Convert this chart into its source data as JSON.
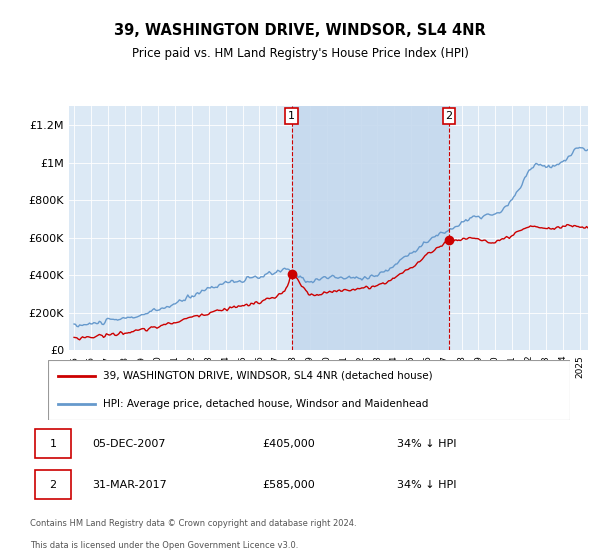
{
  "title": "39, WASHINGTON DRIVE, WINDSOR, SL4 4NR",
  "subtitle": "Price paid vs. HM Land Registry's House Price Index (HPI)",
  "legend_line1": "39, WASHINGTON DRIVE, WINDSOR, SL4 4NR (detached house)",
  "legend_line2": "HPI: Average price, detached house, Windsor and Maidenhead",
  "footer1": "Contains HM Land Registry data © Crown copyright and database right 2024.",
  "footer2": "This data is licensed under the Open Government Licence v3.0.",
  "annotation1_label": "1",
  "annotation1_date": "05-DEC-2007",
  "annotation1_price": "£405,000",
  "annotation1_hpi": "34% ↓ HPI",
  "annotation2_label": "2",
  "annotation2_date": "31-MAR-2017",
  "annotation2_price": "£585,000",
  "annotation2_hpi": "34% ↓ HPI",
  "point1_year": 2007.92,
  "point1_value": 405000,
  "point2_year": 2017.25,
  "point2_value": 585000,
  "bg_color": "#dce9f5",
  "plot_bg": "#dce9f5",
  "shade_color": "#c5d9ee",
  "red_color": "#cc0000",
  "blue_color": "#6699cc",
  "ylim": [
    0,
    1300000
  ],
  "xlim_lo": 1994.7,
  "xlim_hi": 2025.5,
  "yticks": [
    0,
    200000,
    400000,
    600000,
    800000,
    1000000,
    1200000
  ],
  "ytick_labels": [
    "£0",
    "£200K",
    "£400K",
    "£600K",
    "£800K",
    "£1M",
    "£1.2M"
  ]
}
